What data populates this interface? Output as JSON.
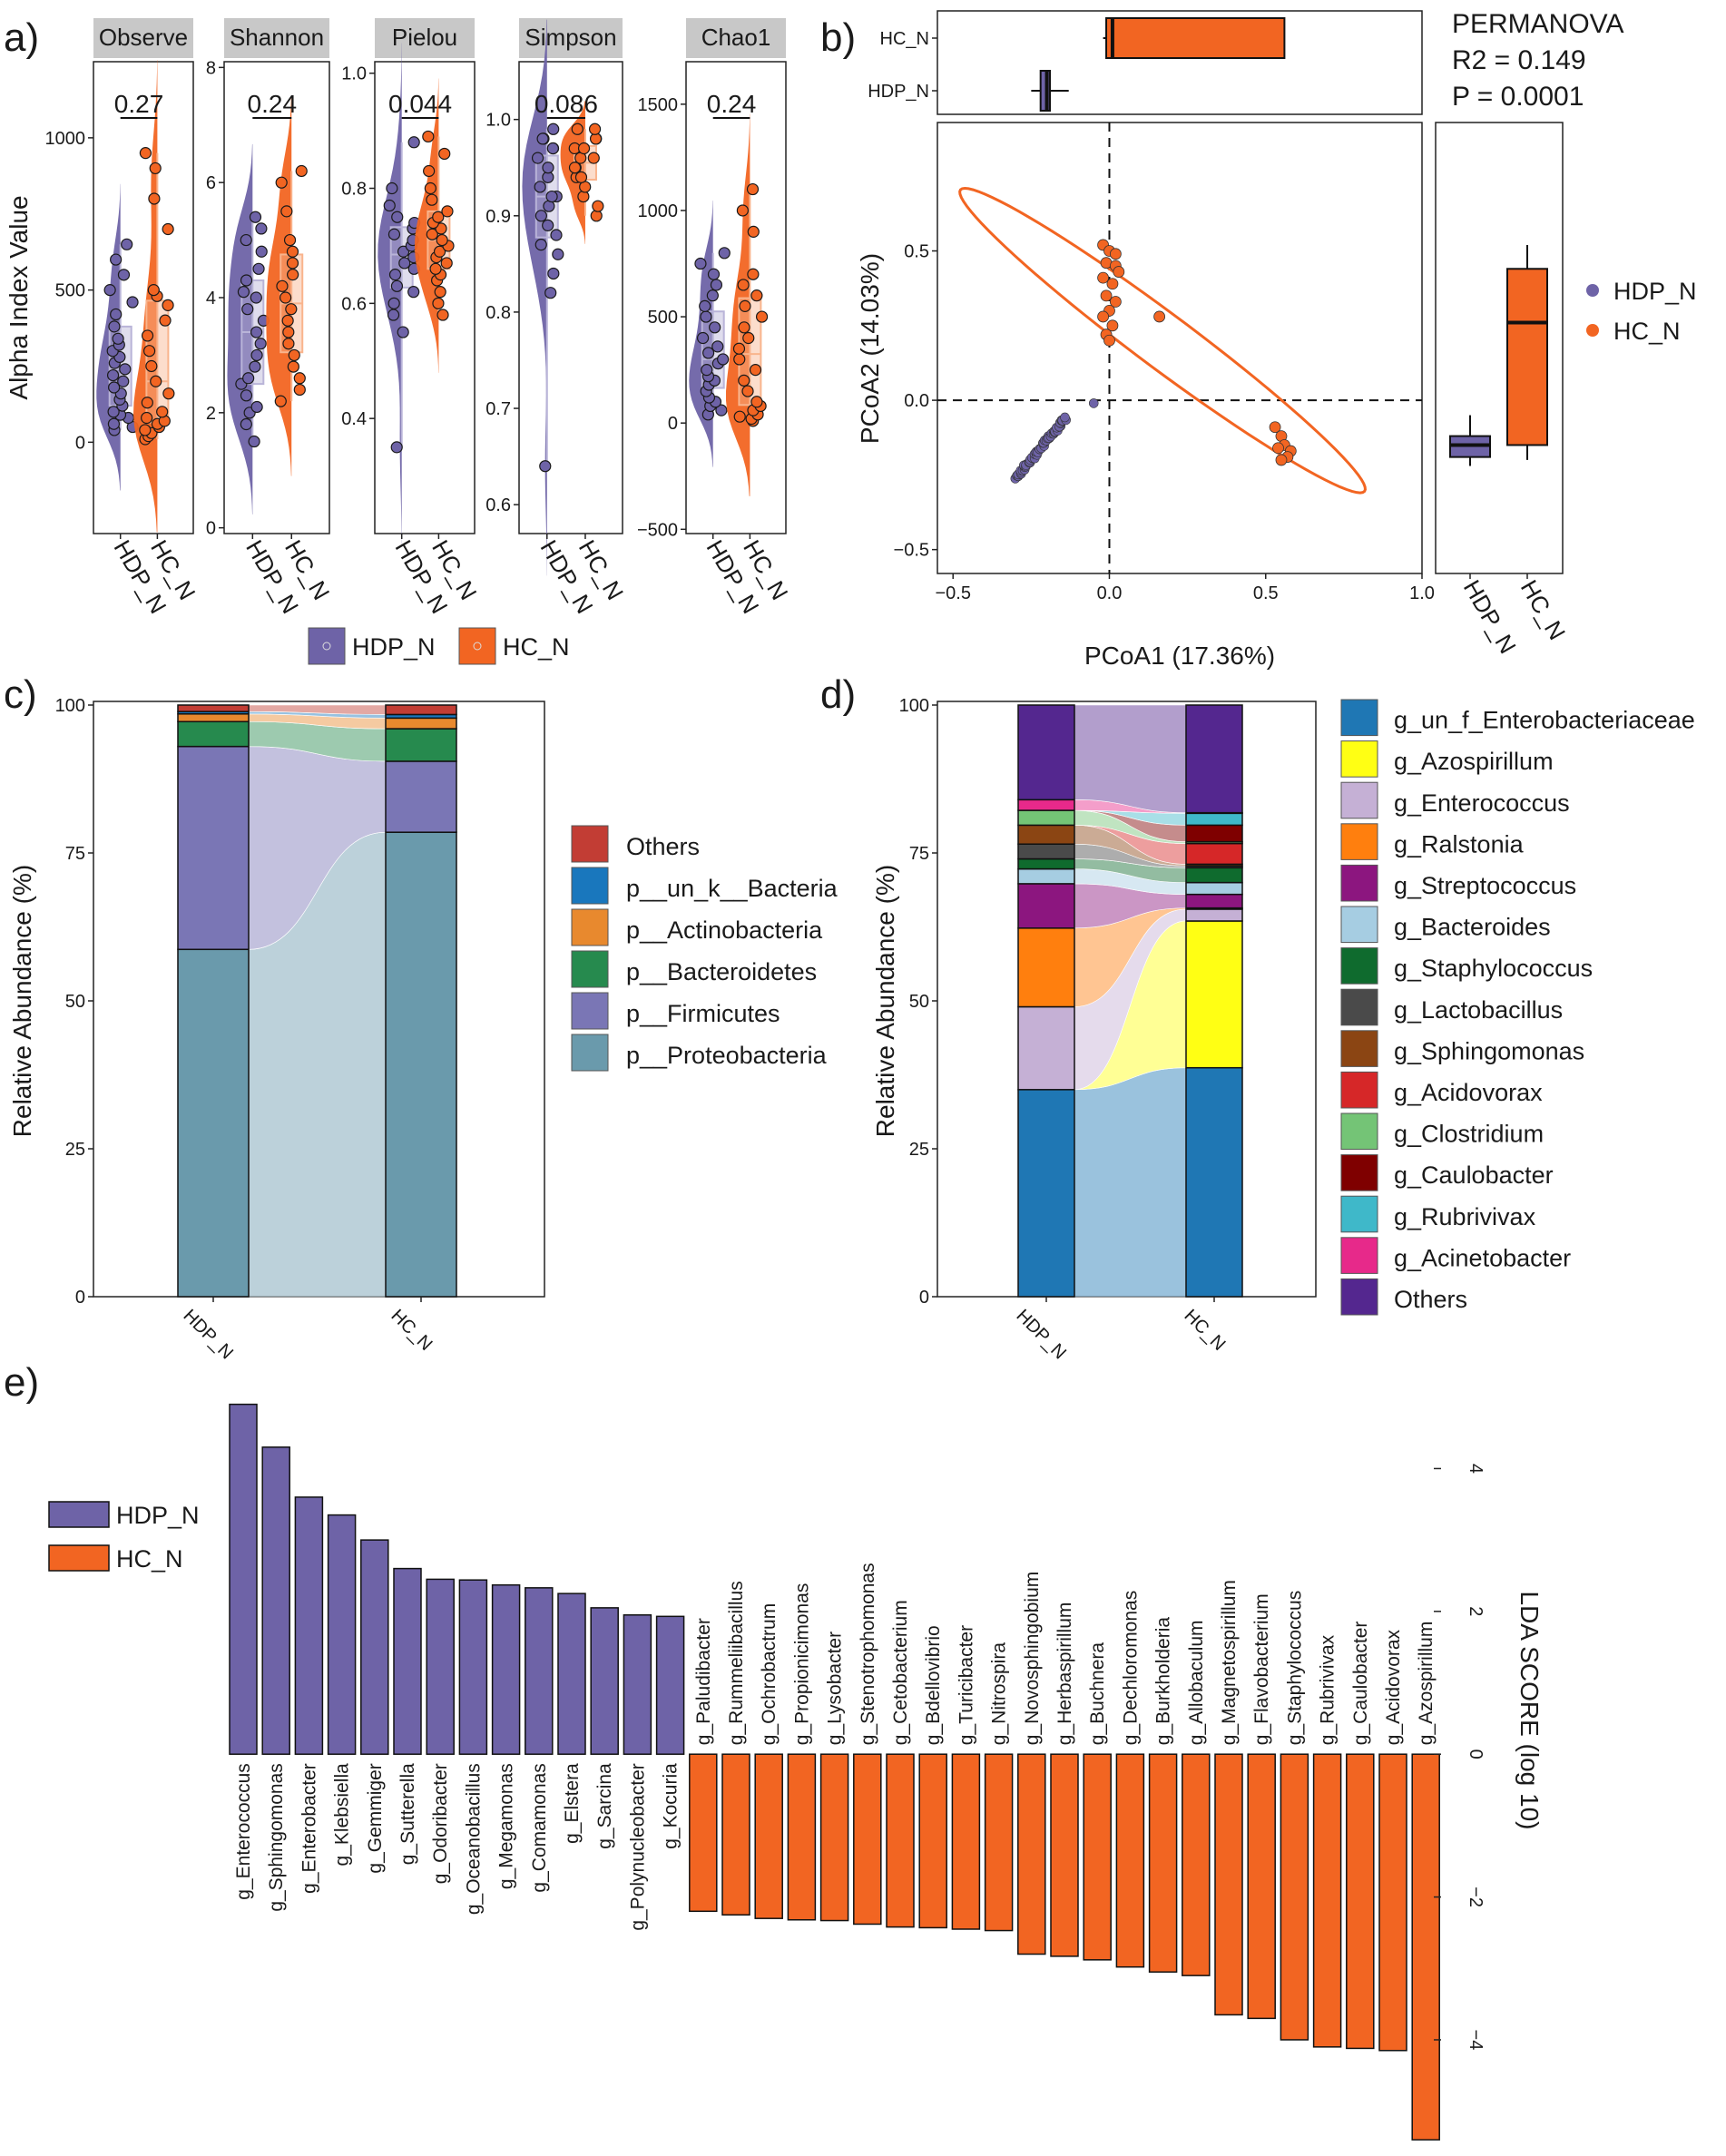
{
  "colors": {
    "hdp": "#6e63a7",
    "hc": "#f26522",
    "hdp_light": "#b9b4d8",
    "hc_light": "#f9b48d"
  },
  "panel_labels": [
    "a)",
    "b)",
    "c)",
    "d)",
    "e)"
  ],
  "groups": [
    "HDP_N",
    "HC_N"
  ],
  "panel_a": {
    "ylabel": "Alpha Index Value",
    "legend": [
      "HDP_N",
      "HC_N"
    ],
    "metrics": [
      {
        "name": "Observe",
        "p": "0.27",
        "ylim": [
          -300,
          1250
        ],
        "ticks": [
          {
            "v": 0,
            "l": "0"
          },
          {
            "v": 500,
            "l": "500"
          },
          {
            "v": 1000,
            "l": "1000"
          }
        ],
        "hdp": [
          40,
          50,
          60,
          80,
          90,
          100,
          120,
          140,
          160,
          180,
          200,
          220,
          240,
          260,
          280,
          300,
          320,
          340,
          380,
          420,
          460,
          500,
          550,
          600,
          650
        ],
        "hc": [
          10,
          20,
          30,
          40,
          50,
          60,
          70,
          80,
          100,
          130,
          160,
          200,
          250,
          300,
          350,
          400,
          450,
          480,
          500,
          700,
          800,
          900,
          950
        ]
      },
      {
        "name": "Shannon",
        "p": "0.24",
        "ylim": [
          -0.1,
          8.1
        ],
        "ticks": [
          {
            "v": 0,
            "l": "0"
          },
          {
            "v": 2,
            "l": "2"
          },
          {
            "v": 4,
            "l": "4"
          },
          {
            "v": 6,
            "l": "6"
          },
          {
            "v": 8,
            "l": "8"
          }
        ],
        "hdp": [
          1.5,
          1.8,
          2.0,
          2.1,
          2.3,
          2.5,
          2.6,
          2.8,
          3.0,
          3.2,
          3.4,
          3.6,
          3.8,
          4.0,
          4.1,
          4.3,
          4.5,
          4.8,
          5.0,
          5.2,
          5.4
        ],
        "hc": [
          2.2,
          2.4,
          2.6,
          2.8,
          3.0,
          3.2,
          3.4,
          3.6,
          3.8,
          4.0,
          4.2,
          4.4,
          4.6,
          4.8,
          5.0,
          5.5,
          6.0,
          6.2
        ]
      },
      {
        "name": "Pielou",
        "p": "0.044",
        "ylim": [
          0.2,
          1.02
        ],
        "ticks": [
          {
            "v": 0.4,
            "l": "0.4"
          },
          {
            "v": 0.6,
            "l": "0.6"
          },
          {
            "v": 0.8,
            "l": "0.8"
          },
          {
            "v": 1.0,
            "l": "1.0"
          }
        ],
        "hdp": [
          0.35,
          0.55,
          0.58,
          0.6,
          0.62,
          0.63,
          0.65,
          0.66,
          0.67,
          0.68,
          0.69,
          0.7,
          0.71,
          0.72,
          0.73,
          0.74,
          0.75,
          0.77,
          0.8,
          0.88
        ],
        "hc": [
          0.58,
          0.6,
          0.62,
          0.64,
          0.65,
          0.66,
          0.67,
          0.68,
          0.69,
          0.7,
          0.71,
          0.72,
          0.73,
          0.74,
          0.75,
          0.76,
          0.78,
          0.8,
          0.83,
          0.86,
          0.89
        ]
      },
      {
        "name": "Simpson",
        "p": "0.086",
        "ylim": [
          0.57,
          1.06
        ],
        "ticks": [
          {
            "v": 0.6,
            "l": "0.6"
          },
          {
            "v": 0.7,
            "l": "0.7"
          },
          {
            "v": 0.8,
            "l": "0.8"
          },
          {
            "v": 0.9,
            "l": "0.9"
          },
          {
            "v": 1.0,
            "l": "1.0"
          }
        ],
        "hdp": [
          0.64,
          0.82,
          0.84,
          0.86,
          0.87,
          0.88,
          0.89,
          0.9,
          0.91,
          0.92,
          0.92,
          0.93,
          0.94,
          0.95,
          0.96,
          0.97,
          0.97,
          0.98,
          0.98,
          0.99
        ],
        "hc": [
          0.9,
          0.91,
          0.92,
          0.93,
          0.94,
          0.94,
          0.95,
          0.95,
          0.96,
          0.96,
          0.97,
          0.97,
          0.98,
          0.98,
          0.99,
          0.99
        ]
      },
      {
        "name": "Chao1",
        "p": "0.24",
        "ylim": [
          -520,
          1700
        ],
        "ticks": [
          {
            "v": -500,
            "l": "−500"
          },
          {
            "v": 0,
            "l": "0"
          },
          {
            "v": 500,
            "l": "500"
          },
          {
            "v": 1000,
            "l": "1000"
          },
          {
            "v": 1500,
            "l": "1500"
          }
        ],
        "hdp": [
          40,
          60,
          80,
          100,
          120,
          150,
          180,
          200,
          220,
          250,
          280,
          300,
          330,
          360,
          400,
          450,
          500,
          550,
          600,
          650,
          700,
          750,
          800
        ],
        "hc": [
          10,
          20,
          30,
          40,
          60,
          80,
          100,
          150,
          200,
          250,
          300,
          350,
          400,
          450,
          500,
          550,
          600,
          650,
          700,
          900,
          1000,
          1100
        ]
      }
    ]
  },
  "panel_b": {
    "xlabel": "PCoA1 (17.36%)",
    "ylabel": "PCoA2 (14.03%)",
    "stats": [
      "PERMANOVA",
      "R2 = 0.149",
      "P = 0.0001"
    ],
    "legend": [
      "HDP_N",
      "HC_N"
    ],
    "xticks": [
      {
        "v": -0.5,
        "l": "−0.5"
      },
      {
        "v": 0,
        "l": "0.0"
      },
      {
        "v": 0.5,
        "l": "0.5"
      },
      {
        "v": 1.0,
        "l": "1.0"
      }
    ],
    "yticks": [
      {
        "v": -0.5,
        "l": "−0.5"
      },
      {
        "v": 0,
        "l": "0.0"
      },
      {
        "v": 0.5,
        "l": "0.5"
      }
    ],
    "xlim": [
      -0.55,
      1.0
    ],
    "ylim": [
      -0.58,
      0.93
    ],
    "box_pc1": {
      "HDP_N": {
        "min": -0.25,
        "q1": -0.22,
        "med": -0.2,
        "q3": -0.19,
        "max": -0.13
      },
      "HC_N": {
        "min": -0.02,
        "q1": -0.01,
        "med": 0.01,
        "q3": 0.56,
        "max": 0.56
      }
    },
    "box_pc2": {
      "HDP_N": {
        "min": -0.22,
        "q1": -0.19,
        "med": -0.15,
        "q3": -0.12,
        "max": -0.05
      },
      "HC_N": {
        "min": -0.2,
        "q1": -0.15,
        "med": 0.26,
        "q3": 0.44,
        "max": 0.52
      }
    },
    "ellipse": {
      "cx": 0.17,
      "cy": 0.2,
      "a": 0.82,
      "b": 0.09,
      "angle_deg": -38
    }
  },
  "panel_c": {
    "ylabel": "Relative Abundance (%)",
    "yticks": [
      0,
      25,
      50,
      75,
      100
    ],
    "categories": [
      "HDP_N",
      "HC_N"
    ],
    "series": [
      {
        "name": "p__Proteobacteria",
        "color": "#6a9aac",
        "values": [
          58.7,
          78.5
        ]
      },
      {
        "name": "p__Firmicutes",
        "color": "#7a76b5",
        "values": [
          34.3,
          12.0
        ]
      },
      {
        "name": "p__Bacteroidetes",
        "color": "#268a4e",
        "values": [
          4.2,
          5.5
        ]
      },
      {
        "name": "p__Actinobacteria",
        "color": "#e8892e",
        "values": [
          1.3,
          1.8
        ]
      },
      {
        "name": "p__un_k__Bacteria",
        "color": "#1977bd",
        "values": [
          0.4,
          0.6
        ]
      },
      {
        "name": "Others",
        "color": "#c23d34",
        "values": [
          1.1,
          1.6
        ]
      }
    ],
    "legend_order": [
      "Others",
      "p__un_k__Bacteria",
      "p__Actinobacteria",
      "p__Bacteroidetes",
      "p__Firmicutes",
      "p__Proteobacteria"
    ]
  },
  "panel_d": {
    "ylabel": "Relative Abundance (%)",
    "yticks": [
      0,
      25,
      50,
      75,
      100
    ],
    "categories": [
      "HDP_N",
      "HC_N"
    ],
    "series": [
      {
        "name": "g_un_f_Enterobacteriaceae",
        "color": "#1f77b4",
        "values": [
          35.0,
          38.7
        ]
      },
      {
        "name": "g_Azospirillum",
        "color": "#ffff14",
        "values": [
          0.0,
          24.8
        ]
      },
      {
        "name": "g_Enterococcus",
        "color": "#c5b0d5",
        "values": [
          14.0,
          2.0
        ]
      },
      {
        "name": "g_Ralstonia",
        "color": "#ff7f0e",
        "values": [
          13.3,
          0.2
        ]
      },
      {
        "name": "g_Streptococcus",
        "color": "#8c167f",
        "values": [
          7.5,
          2.3
        ]
      },
      {
        "name": "g_Bacteroides",
        "color": "#a6cde2",
        "values": [
          2.5,
          2.0
        ]
      },
      {
        "name": "g_Staphylococcus",
        "color": "#0f6b2e",
        "values": [
          1.7,
          2.5
        ]
      },
      {
        "name": "g_Lactobacillus",
        "color": "#4a4a4a",
        "values": [
          2.5,
          0.3
        ]
      },
      {
        "name": "g_Sphingomonas",
        "color": "#8b4513",
        "values": [
          3.2,
          0.3
        ]
      },
      {
        "name": "g_Acidovorax",
        "color": "#d62728",
        "values": [
          0.0,
          3.5
        ]
      },
      {
        "name": "g_Clostridium",
        "color": "#74c476",
        "values": [
          2.5,
          0.3
        ]
      },
      {
        "name": "g_Caulobacter",
        "color": "#7f0000",
        "values": [
          0.0,
          2.8
        ]
      },
      {
        "name": "g_Rubrivivax",
        "color": "#3fb8c9",
        "values": [
          0.0,
          2.0
        ]
      },
      {
        "name": "g_Acinetobacter",
        "color": "#e7298a",
        "values": [
          1.8,
          0.1
        ]
      },
      {
        "name": "Others",
        "color": "#54278f",
        "values": [
          16.0,
          18.2
        ]
      }
    ]
  },
  "panel_e": {
    "ylabel": "LDA SCORE (log 10)",
    "legend": [
      "HDP_N",
      "HC_N"
    ],
    "yticks": [
      {
        "v": 4,
        "l": "4"
      },
      {
        "v": 2,
        "l": "2"
      },
      {
        "v": 0,
        "l": "0"
      },
      {
        "v": -2,
        "l": "−2"
      },
      {
        "v": -4,
        "l": "−4"
      }
    ],
    "ylim": [
      -5.5,
      5.2
    ],
    "hdp": [
      {
        "name": "g_Enterococcus",
        "value": 4.9
      },
      {
        "name": "g_Sphingomonas",
        "value": 4.3
      },
      {
        "name": "g_Enterobacter",
        "value": 3.6
      },
      {
        "name": "g_Klebsiella",
        "value": 3.35
      },
      {
        "name": "g_Gemmiger",
        "value": 3.0
      },
      {
        "name": "g_Sutterella",
        "value": 2.6
      },
      {
        "name": "g_Odoribacter",
        "value": 2.45
      },
      {
        "name": "g_Oceanobacillus",
        "value": 2.44
      },
      {
        "name": "g_Megamonas",
        "value": 2.37
      },
      {
        "name": "g_Comamonas",
        "value": 2.33
      },
      {
        "name": "g_Elstera",
        "value": 2.25
      },
      {
        "name": "g_Sarcina",
        "value": 2.05
      },
      {
        "name": "g_Polynucleobacter",
        "value": 1.95
      },
      {
        "name": "g_Kocuria",
        "value": 1.93
      }
    ],
    "hc": [
      {
        "name": "g_Paludibacter",
        "value": -2.2
      },
      {
        "name": "g_Rummeliibacillus",
        "value": -2.25
      },
      {
        "name": "g_Ochrobactrum",
        "value": -2.3
      },
      {
        "name": "g_Propionicimonas",
        "value": -2.32
      },
      {
        "name": "g_Lysobacter",
        "value": -2.33
      },
      {
        "name": "g_Stenotrophomonas",
        "value": -2.38
      },
      {
        "name": "g_Cetobacterium",
        "value": -2.42
      },
      {
        "name": "g_Bdellovibrio",
        "value": -2.43
      },
      {
        "name": "g_Turicibacter",
        "value": -2.45
      },
      {
        "name": "g_Nitrospira",
        "value": -2.47
      },
      {
        "name": "g_Novosphingobium",
        "value": -2.8
      },
      {
        "name": "g_Herbaspirillum",
        "value": -2.83
      },
      {
        "name": "g_Buchnera",
        "value": -2.88
      },
      {
        "name": "g_Dechloromonas",
        "value": -2.98
      },
      {
        "name": "g_Burkholderia",
        "value": -3.05
      },
      {
        "name": "g_Allobaculum",
        "value": -3.1
      },
      {
        "name": "g_Magnetospirillum",
        "value": -3.65
      },
      {
        "name": "g_Flavobacterium",
        "value": -3.7
      },
      {
        "name": "g_Staphylococcus",
        "value": -4.0
      },
      {
        "name": "g_Rubrivivax",
        "value": -4.1
      },
      {
        "name": "g_Caulobacter",
        "value": -4.12
      },
      {
        "name": "g_Acidovorax",
        "value": -4.15
      },
      {
        "name": "g_Azospirillum",
        "value": -5.4
      }
    ]
  }
}
